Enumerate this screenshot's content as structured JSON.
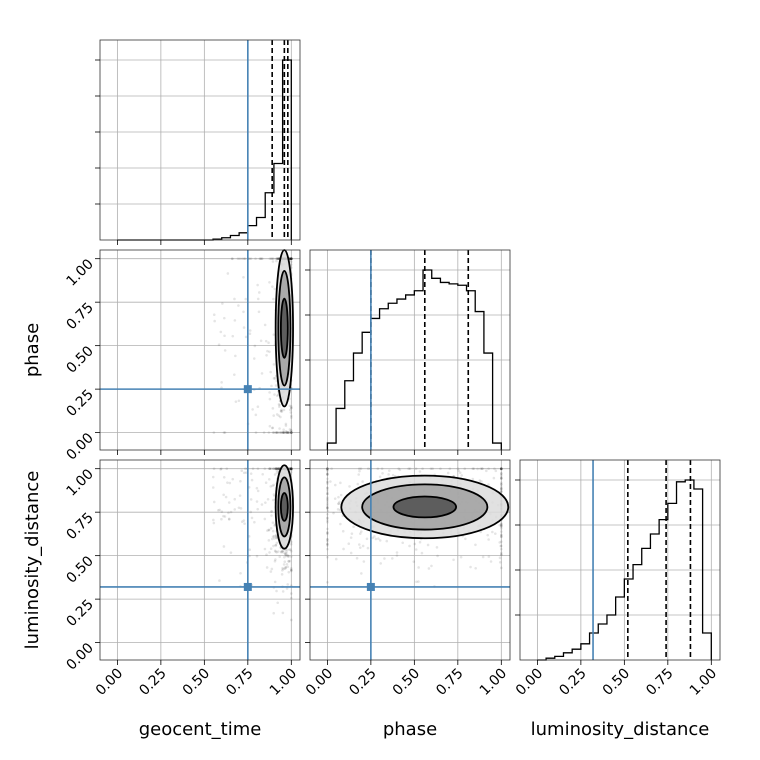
{
  "chart_data": {
    "type": "corner",
    "params": [
      "geocent_time",
      "phase",
      "luminosity_distance"
    ],
    "axis_labels": {
      "geocent_time": "geocent_time",
      "phase": "phase",
      "luminosity_distance": "luminosity_distance"
    },
    "range": [
      -0.1,
      1.05
    ],
    "tick_values": [
      0.0,
      0.25,
      0.5,
      0.75,
      1.0
    ],
    "tick_labels": [
      "0.00",
      "0.25",
      "0.50",
      "0.75",
      "1.00"
    ],
    "truths": {
      "geocent_time": 0.75,
      "phase": 0.25,
      "luminosity_distance": 0.32
    },
    "quantiles": {
      "geocent_time": [
        0.89,
        0.96,
        0.98
      ],
      "phase": [
        0.25,
        0.56,
        0.81
      ],
      "luminosity_distance": [
        0.52,
        0.74,
        0.88
      ]
    },
    "bin_edges": [
      0.0,
      0.05,
      0.1,
      0.15,
      0.2,
      0.25,
      0.3,
      0.35,
      0.4,
      0.45,
      0.5,
      0.55,
      0.6,
      0.65,
      0.7,
      0.75,
      0.8,
      0.85,
      0.9,
      0.95,
      1.0
    ],
    "histograms": {
      "geocent_time": [
        0,
        0,
        0,
        0,
        0,
        0,
        0,
        0,
        0,
        0,
        0,
        0.2,
        0.5,
        1.0,
        1.6,
        3.2,
        5.0,
        10.5,
        17.0,
        40.0
      ],
      "phase": [
        0.5,
        3.0,
        5.0,
        7.0,
        8.5,
        9.5,
        10.2,
        10.6,
        10.9,
        11.2,
        11.5,
        13.0,
        12.4,
        12.1,
        12.0,
        11.9,
        11.5,
        10.0,
        7.0,
        0.5
      ],
      "luminosity_distance": [
        0,
        0.1,
        0.2,
        0.4,
        0.6,
        0.9,
        1.5,
        2.0,
        2.5,
        3.5,
        4.5,
        5.3,
        6.2,
        7.0,
        7.8,
        8.7,
        9.9,
        10.0,
        9.5,
        1.5
      ]
    },
    "hist_ylim": {
      "geocent_time": [
        0,
        40
      ],
      "phase": [
        0,
        13.0
      ],
      "luminosity_distance": [
        0,
        10.0
      ]
    },
    "joint": {
      "phase_vs_geocent_time": {
        "x": "geocent_time",
        "y": "phase",
        "contour_center": [
          0.96,
          0.6
        ],
        "contour_half_widths": [
          [
            0.05,
            0.45
          ],
          [
            0.035,
            0.33
          ],
          [
            0.02,
            0.17
          ]
        ]
      },
      "luminosity_distance_vs_geocent_time": {
        "x": "geocent_time",
        "y": "luminosity_distance",
        "contour_center": [
          0.96,
          0.78
        ],
        "contour_half_widths": [
          [
            0.05,
            0.24
          ],
          [
            0.035,
            0.17
          ],
          [
            0.02,
            0.08
          ]
        ]
      },
      "luminosity_distance_vs_phase": {
        "x": "phase",
        "y": "luminosity_distance",
        "contour_center": [
          0.56,
          0.78
        ],
        "contour_half_widths": [
          [
            0.48,
            0.18
          ],
          [
            0.36,
            0.13
          ],
          [
            0.18,
            0.06
          ]
        ]
      }
    }
  }
}
